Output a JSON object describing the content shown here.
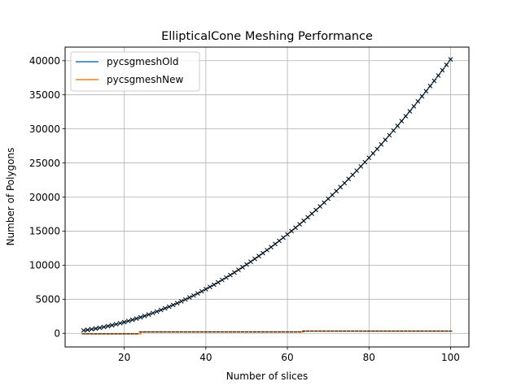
{
  "chart_data": {
    "type": "line",
    "title": "EllipticalCone Meshing Performance",
    "xlabel": "Number of slices",
    "ylabel": "Number of Polygons",
    "xlim": [
      5.5,
      104.5
    ],
    "ylim": [
      -2000,
      42000
    ],
    "xticks": [
      20,
      40,
      60,
      80,
      100
    ],
    "yticks": [
      0,
      5000,
      10000,
      15000,
      20000,
      25000,
      30000,
      35000,
      40000
    ],
    "grid": true,
    "legend_position": "top-left",
    "marker": "x",
    "series": [
      {
        "name": "pycsgmeshOld",
        "color": "#1f77b4",
        "x_start": 10,
        "x_end": 100,
        "x_step": 1,
        "formula": "4*x^2 + 2*x",
        "x_sample": [
          10,
          20,
          30,
          40,
          50,
          60,
          70,
          80,
          90,
          100
        ],
        "y_sample": [
          420,
          1640,
          3660,
          6480,
          10100,
          14520,
          19740,
          25760,
          32580,
          40200
        ]
      },
      {
        "name": "pycsgmeshNew",
        "color": "#ff7f0e",
        "x": [
          10,
          24,
          64,
          100
        ],
        "y": [
          -80,
          200,
          330,
          330
        ],
        "drawstyle": "steps-post"
      }
    ]
  }
}
